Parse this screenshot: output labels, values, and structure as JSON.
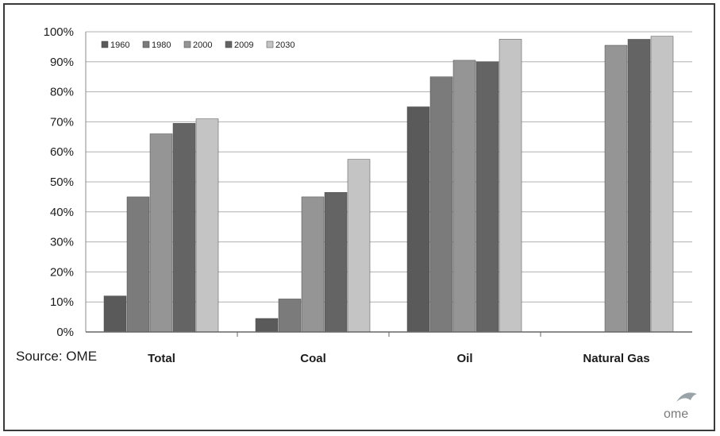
{
  "chart_data": {
    "type": "bar",
    "categories": [
      "Total",
      "Coal",
      "Oil",
      "Natural Gas"
    ],
    "series": [
      {
        "name": "1960",
        "values": [
          12,
          4.5,
          75,
          null
        ],
        "color": "#5a5a5a"
      },
      {
        "name": "1980",
        "values": [
          45,
          11,
          85,
          null
        ],
        "color": "#7b7b7b"
      },
      {
        "name": "2000",
        "values": [
          66,
          45,
          90.5,
          95.5
        ],
        "color": "#959595"
      },
      {
        "name": "2009",
        "values": [
          69.5,
          46.5,
          90,
          97.5
        ],
        "color": "#646464"
      },
      {
        "name": "2030",
        "values": [
          71,
          57.5,
          97.5,
          98.5
        ],
        "color": "#c4c4c4"
      }
    ],
    "yticks": [
      "0%",
      "10%",
      "20%",
      "30%",
      "40%",
      "50%",
      "60%",
      "70%",
      "80%",
      "90%",
      "100%"
    ],
    "ylim": [
      0,
      100
    ],
    "grid": true,
    "legend_position": "top-left",
    "source": "Source: OME"
  },
  "logo": {
    "text": "ome",
    "color": "#7a7a7a"
  }
}
